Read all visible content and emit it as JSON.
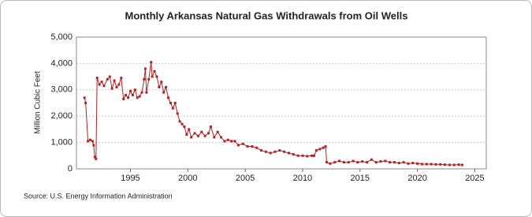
{
  "chart_data": {
    "type": "line",
    "title": "Monthly Arkansas Natural Gas Withdrawals from Oil Wells",
    "y_label": "Million Cubic Feet",
    "source": "Source: U.S. Energy Information Administration",
    "x": [
      1991.0,
      1991.1,
      1991.3,
      1991.5,
      1991.7,
      1991.8,
      1991.9,
      1992.0,
      1992.1,
      1992.3,
      1992.5,
      1992.7,
      1993.0,
      1993.2,
      1993.4,
      1993.6,
      1993.8,
      1994.0,
      1994.2,
      1994.4,
      1994.6,
      1994.8,
      1995.0,
      1995.2,
      1995.4,
      1995.6,
      1995.8,
      1996.0,
      1996.2,
      1996.3,
      1996.4,
      1996.6,
      1996.8,
      1996.9,
      1997.1,
      1997.3,
      1997.5,
      1997.7,
      1997.9,
      1998.1,
      1998.3,
      1998.5,
      1998.7,
      1998.9,
      1999.1,
      1999.3,
      1999.5,
      1999.7,
      1999.9,
      2000.1,
      2000.3,
      2000.6,
      2000.9,
      2001.2,
      2001.5,
      2001.8,
      2002.0,
      2002.3,
      2002.6,
      2002.9,
      2003.2,
      2003.5,
      2003.8,
      2004.1,
      2004.4,
      2004.8,
      2005.2,
      2005.6,
      2006.0,
      2006.4,
      2006.8,
      2007.2,
      2007.6,
      2008.0,
      2008.4,
      2008.8,
      2009.2,
      2009.6,
      2010.0,
      2010.4,
      2010.8,
      2011.0,
      2011.2,
      2011.5,
      2011.8,
      2012.0,
      2012.1,
      2012.4,
      2012.8,
      2013.2,
      2013.6,
      2014.0,
      2014.4,
      2014.8,
      2015.2,
      2015.6,
      2016.0,
      2016.4,
      2016.8,
      2017.2,
      2017.6,
      2018.0,
      2018.4,
      2018.8,
      2019.2,
      2019.6,
      2020.0,
      2020.4,
      2020.8,
      2021.2,
      2021.6,
      2022.0,
      2022.4,
      2022.8,
      2023.2,
      2023.6,
      2023.9
    ],
    "series": [
      {
        "name": "Arkansas",
        "color": "#b22222",
        "values": [
          2700,
          2500,
          1050,
          1100,
          1050,
          900,
          450,
          380,
          3450,
          3200,
          3300,
          3150,
          3400,
          3500,
          3050,
          3350,
          3100,
          3200,
          3450,
          2650,
          2800,
          2700,
          2950,
          2800,
          3000,
          2700,
          2750,
          2900,
          3400,
          3800,
          2900,
          3400,
          4050,
          3500,
          3700,
          3500,
          3100,
          3300,
          2900,
          3100,
          2700,
          2500,
          2300,
          2500,
          2100,
          1800,
          1700,
          1600,
          1300,
          1500,
          1200,
          1350,
          1250,
          1400,
          1250,
          1350,
          1600,
          1200,
          1400,
          1200,
          1050,
          1100,
          1050,
          1050,
          900,
          950,
          850,
          850,
          800,
          700,
          650,
          600,
          650,
          700,
          650,
          600,
          550,
          500,
          500,
          480,
          500,
          500,
          700,
          750,
          800,
          850,
          250,
          200,
          250,
          300,
          250,
          250,
          300,
          250,
          280,
          250,
          350,
          250,
          280,
          300,
          250,
          250,
          220,
          250,
          200,
          220,
          200,
          180,
          180,
          180,
          170,
          170,
          160,
          150,
          150,
          160,
          150
        ]
      }
    ],
    "xlim": [
      1990.3,
      2026
    ],
    "xticks": [
      1995,
      2000,
      2005,
      2010,
      2015,
      2020,
      2025
    ],
    "ylim": [
      0,
      5000
    ],
    "yticks": [
      0,
      {
        "value": 1000,
        "label": "1,000"
      },
      {
        "value": 2000,
        "label": "2,000"
      },
      {
        "value": 3000,
        "label": "3,000"
      },
      {
        "value": 4000,
        "label": "4,000"
      },
      {
        "value": 5000,
        "label": "5,000"
      }
    ],
    "grid": true
  }
}
